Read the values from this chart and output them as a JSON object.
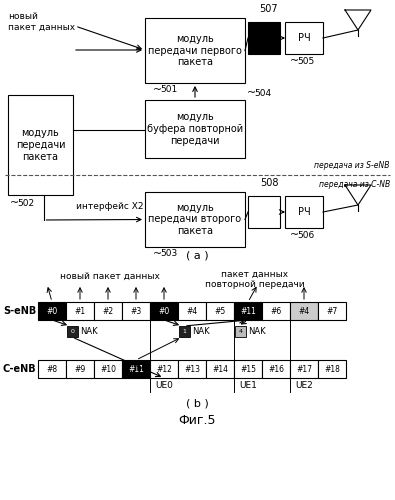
{
  "title": "Фиг.5",
  "fig_width": 3.95,
  "fig_height": 5.0,
  "bg_color": "#ffffff",
  "part_a_label": "( a )",
  "part_b_label": "( b )",
  "s_enb_label": "S-eNB",
  "c_enb_label": "C-eNB",
  "new_packet_label": "новый\nпакет данных",
  "retrans_packet_label": "пакет данных\nповторной передачи",
  "module_packet_label": "модуль\nпередачи\nпакета",
  "module_first_label": "модуль\nпередачи первого\nпакета",
  "module_buffer_label": "модуль\nбуфера повторной\nпередачи",
  "module_second_label": "модуль\nпередачи второго\nпакета",
  "rf_label": "РЧ",
  "x2_label": "интерфейс Х2",
  "from_senb_label": "передача из S-eNB",
  "from_cnb_label": "передача из С-NB",
  "label_501": "501",
  "label_502": "502",
  "label_503": "503",
  "label_504": "504",
  "label_505": "505",
  "label_506": "506",
  "label_507": "507",
  "label_508": "508",
  "s_enb_packets": [
    "#0",
    "#1",
    "#2",
    "#3",
    "#0",
    "#4",
    "#5",
    "#11",
    "#6",
    "#4",
    "#7"
  ],
  "c_enb_packets": [
    "#8",
    "#9",
    "#10",
    "#11",
    "#12",
    "#13",
    "#14",
    "#15",
    "#16",
    "#17",
    "#18"
  ],
  "s_enb_dark": [
    0,
    4,
    7
  ],
  "s_enb_gray": [
    9
  ],
  "c_enb_dark": [
    3
  ],
  "ue_dividers": [
    4,
    7,
    9
  ],
  "ue_labels": [
    [
      "UE0",
      4
    ],
    [
      "UE1",
      7
    ],
    [
      "UE2",
      9
    ]
  ]
}
